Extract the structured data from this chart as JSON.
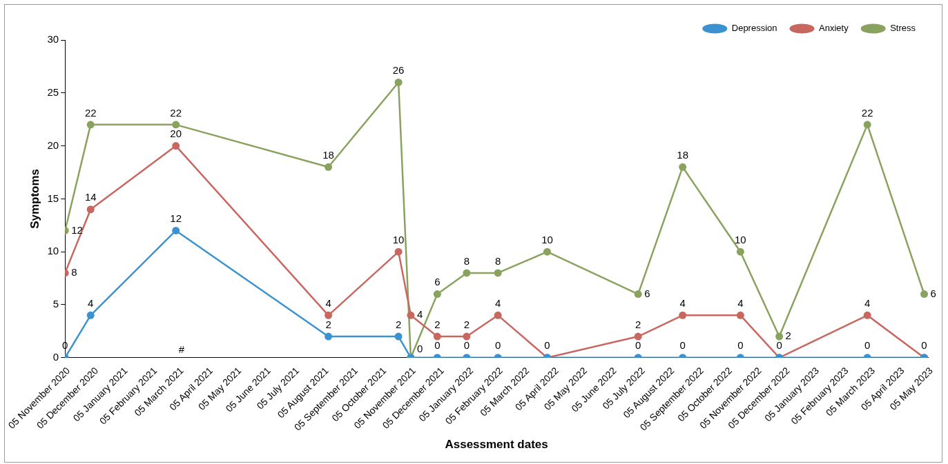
{
  "chart_data": {
    "type": "line",
    "xlabel": "Assessment dates",
    "ylabel": "Symptoms",
    "x": [
      "2020-11-05",
      "2020-12-02",
      "2021-03-02",
      "2021-08-10",
      "2021-10-23",
      "2021-11-05",
      "2021-12-03",
      "2022-01-03",
      "2022-02-05",
      "2022-03-29",
      "2022-07-03",
      "2022-08-19",
      "2022-10-19",
      "2022-11-29",
      "2023-03-02",
      "2023-05-01"
    ],
    "xlim": [
      "2020-11-05",
      "2023-05-05"
    ],
    "xticks": [
      {
        "value": "2020-11-05",
        "label": "05 November 2020"
      },
      {
        "value": "2020-12-05",
        "label": "05 December 2020"
      },
      {
        "value": "2021-01-05",
        "label": "05 January 2021"
      },
      {
        "value": "2021-02-05",
        "label": "05 February 2021"
      },
      {
        "value": "2021-03-05",
        "label": "05 March 2021"
      },
      {
        "value": "2021-04-05",
        "label": "05 April 2021"
      },
      {
        "value": "2021-05-05",
        "label": "05 May 2021"
      },
      {
        "value": "2021-06-05",
        "label": "05 June 2021"
      },
      {
        "value": "2021-07-05",
        "label": "05 July 2021"
      },
      {
        "value": "2021-08-05",
        "label": "05 August 2021"
      },
      {
        "value": "2021-09-05",
        "label": "05 September 2021"
      },
      {
        "value": "2021-10-05",
        "label": "05 October 2021"
      },
      {
        "value": "2021-11-05",
        "label": "05 November 2021"
      },
      {
        "value": "2021-12-05",
        "label": "05 December 2021"
      },
      {
        "value": "2022-01-05",
        "label": "05 January 2022"
      },
      {
        "value": "2022-02-05",
        "label": "05 February 2022"
      },
      {
        "value": "2022-03-05",
        "label": "05 March 2022"
      },
      {
        "value": "2022-04-05",
        "label": "05 April 2022"
      },
      {
        "value": "2022-05-05",
        "label": "05 May 2022"
      },
      {
        "value": "2022-06-05",
        "label": "05 June 2022"
      },
      {
        "value": "2022-07-05",
        "label": "05 July 2022"
      },
      {
        "value": "2022-08-05",
        "label": "05 August 2022"
      },
      {
        "value": "2022-09-05",
        "label": "05 September 2022"
      },
      {
        "value": "2022-10-05",
        "label": "05 October 2022"
      },
      {
        "value": "2022-11-05",
        "label": "05 November 2022"
      },
      {
        "value": "2022-12-05",
        "label": "05 December 2022"
      },
      {
        "value": "2023-01-05",
        "label": "05 January 2023"
      },
      {
        "value": "2023-02-05",
        "label": "05 February 2023"
      },
      {
        "value": "2023-03-05",
        "label": "05 March 2023"
      },
      {
        "value": "2023-04-05",
        "label": "05 April 2023"
      },
      {
        "value": "2023-05-05",
        "label": "05 May 2023"
      }
    ],
    "ylim": [
      0,
      30
    ],
    "yticks": [
      0,
      5,
      10,
      15,
      20,
      25,
      30
    ],
    "series": [
      {
        "name": "Depression",
        "color": "#3a93d0",
        "values": [
          0,
          4,
          12,
          2,
          2,
          0,
          0,
          0,
          0,
          0,
          0,
          0,
          0,
          0,
          0,
          0
        ],
        "value_labels": [
          "0",
          "4",
          "12",
          "2",
          "2",
          null,
          "0",
          "0",
          "0",
          "0",
          "0",
          "0",
          "0",
          "0",
          "0",
          "0"
        ]
      },
      {
        "name": "Anxiety",
        "color": "#c8675f",
        "values": [
          8,
          14,
          20,
          4,
          10,
          4,
          2,
          2,
          4,
          0,
          2,
          4,
          4,
          0,
          4,
          0
        ],
        "value_labels": [
          "8",
          "14",
          "20",
          "4",
          "10",
          "4",
          "2",
          "2",
          "4",
          null,
          "2",
          "4",
          "4",
          null,
          "4",
          null
        ]
      },
      {
        "name": "Stress",
        "color": "#89a35f",
        "values": [
          12,
          22,
          22,
          18,
          26,
          0,
          6,
          8,
          8,
          10,
          6,
          18,
          10,
          2,
          22,
          6
        ],
        "value_labels": [
          "12",
          "22",
          "22",
          "18",
          "26",
          "0",
          "6",
          "8",
          "8",
          "10",
          "6",
          "18",
          "10",
          "2",
          "22",
          "6"
        ]
      }
    ],
    "annotations": [
      "#"
    ],
    "legend": "top right",
    "grid": false,
    "marker": "circle",
    "line_style": "solid"
  }
}
